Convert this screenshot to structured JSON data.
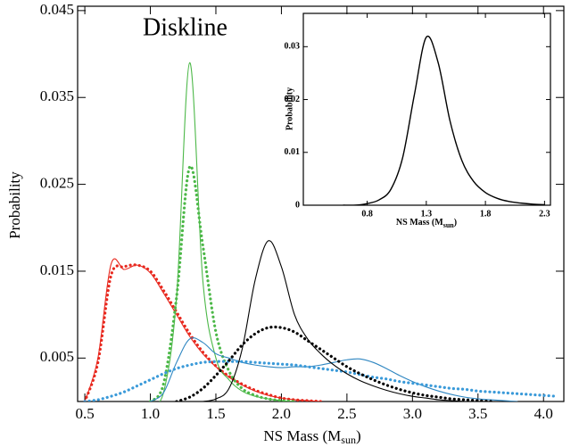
{
  "chart_data": [
    {
      "type": "line",
      "title": "Diskline",
      "xlabel": {
        "text": "NS Mass (M",
        "sub": "sun",
        "end": ")"
      },
      "ylabel": "Probability",
      "xlim": [
        0.445,
        4.155
      ],
      "ylim": [
        0,
        0.0455
      ],
      "xticks": [
        0.5,
        {
          "value": 1.0,
          "label": "1.0"
        },
        1.5,
        {
          "value": 2.0,
          "label": "2.0"
        },
        2.5,
        {
          "value": 3.0,
          "label": "3.0"
        },
        3.5,
        {
          "value": 4.0,
          "label": "4.0"
        }
      ],
      "yticks": [
        0.005,
        0.015,
        0.025,
        0.035,
        0.045
      ],
      "grid": false,
      "x": [
        0.5,
        0.6,
        0.7,
        0.8,
        0.9,
        1.0,
        1.1,
        1.2,
        1.3,
        1.4,
        1.5,
        1.6,
        1.7,
        1.8,
        1.9,
        2.0,
        2.1,
        2.2,
        2.3,
        2.4,
        2.5,
        2.6,
        2.7,
        2.8,
        2.9,
        3.0,
        3.1,
        3.2,
        3.3,
        3.4,
        3.5,
        3.6,
        3.7,
        3.8,
        3.9,
        4.0,
        4.1
      ],
      "series": [
        {
          "color": "#e8281e",
          "style": "solid",
          "values": [
            0,
            0.005,
            0.0158,
            0.0152,
            0.0157,
            0.0148,
            0.0125,
            0.01,
            0.0075,
            0.0055,
            0.004,
            0.0028,
            0.0019,
            0.0012,
            0.0007,
            0.0004,
            0.0002,
            0.0001,
            0,
            null,
            null,
            null,
            null,
            null,
            null,
            null,
            null,
            null,
            null,
            null,
            null,
            null,
            null,
            null,
            null,
            null,
            null
          ]
        },
        {
          "color": "#e8281e",
          "style": "dotted",
          "values": [
            0,
            0.0045,
            0.0145,
            0.0155,
            0.0157,
            0.015,
            0.0128,
            0.0103,
            0.0078,
            0.0057,
            0.0041,
            0.0029,
            0.002,
            0.0013,
            0.0008,
            0.0004,
            0.0002,
            0.0001,
            0,
            null,
            null,
            null,
            null,
            null,
            null,
            null,
            null,
            null,
            null,
            null,
            null,
            null,
            null,
            null,
            null,
            null,
            null
          ]
        },
        {
          "color": "#4cb848",
          "style": "solid",
          "values": [
            null,
            null,
            null,
            null,
            null,
            0,
            0.001,
            0.012,
            0.039,
            0.014,
            0.005,
            0.0025,
            0.0012,
            0.0006,
            0.0003,
            0.0001,
            0,
            null,
            null,
            null,
            null,
            null,
            null,
            null,
            null,
            null,
            null,
            null,
            null,
            null,
            null,
            null,
            null,
            null,
            null,
            null,
            null
          ]
        },
        {
          "color": "#4cb848",
          "style": "dotted",
          "values": [
            null,
            null,
            null,
            null,
            null,
            0,
            0.002,
            0.012,
            0.027,
            0.018,
            0.008,
            0.0035,
            0.0015,
            0.0007,
            0.0003,
            0.0001,
            0,
            null,
            null,
            null,
            null,
            null,
            null,
            null,
            null,
            null,
            null,
            null,
            null,
            null,
            null,
            null,
            null,
            null,
            null,
            null,
            null
          ]
        },
        {
          "color": "#2e86c1",
          "style": "solid",
          "values": [
            null,
            null,
            null,
            null,
            null,
            0,
            0.001,
            0.0045,
            0.0072,
            0.0068,
            0.0055,
            0.005,
            0.0045,
            0.0042,
            0.004,
            0.0039,
            0.004,
            0.004,
            0.0042,
            0.0045,
            0.0048,
            0.0049,
            0.0045,
            0.0038,
            0.003,
            0.0023,
            0.0017,
            0.0012,
            0.0008,
            0.0005,
            0.0003,
            0.0002,
            0.0001,
            0,
            null,
            null,
            null
          ]
        },
        {
          "color": "#3a9ad9",
          "style": "dotted",
          "values": [
            0,
            0.0002,
            0.0006,
            0.0011,
            0.0018,
            0.0025,
            0.0032,
            0.0038,
            0.0042,
            0.0045,
            0.0046,
            0.0046,
            0.0046,
            0.0045,
            0.0044,
            0.0043,
            0.0042,
            0.004,
            0.0038,
            0.0036,
            0.0034,
            0.0031,
            0.0028,
            0.0026,
            0.0023,
            0.0021,
            0.0019,
            0.0017,
            0.0015,
            0.0014,
            0.0012,
            0.0011,
            0.001,
            0.0009,
            0.0008,
            0.0007,
            0.0006
          ]
        },
        {
          "color": "#000000",
          "style": "solid",
          "values": [
            null,
            null,
            null,
            null,
            null,
            null,
            null,
            null,
            null,
            0,
            0.0003,
            0.0015,
            0.006,
            0.014,
            0.0185,
            0.0155,
            0.01,
            0.0072,
            0.0055,
            0.0042,
            0.0032,
            0.0024,
            0.0018,
            0.0013,
            0.0009,
            0.0006,
            0.0004,
            0.0002,
            0.0001,
            0,
            null,
            null,
            null,
            null,
            null,
            null,
            null
          ]
        },
        {
          "color": "#000000",
          "style": "dotted",
          "values": [
            null,
            null,
            null,
            null,
            null,
            null,
            null,
            0,
            0.0005,
            0.0015,
            0.003,
            0.0047,
            0.0065,
            0.0078,
            0.0085,
            0.0085,
            0.008,
            0.007,
            0.006,
            0.005,
            0.004,
            0.0032,
            0.0025,
            0.0019,
            0.0014,
            0.001,
            0.0007,
            0.0005,
            0.0003,
            0.0002,
            0.0001,
            0,
            null,
            null,
            null,
            null,
            null
          ]
        }
      ]
    },
    {
      "type": "line",
      "xlabel": {
        "text": "NS Mass (M",
        "sub": "sun",
        "end": ")"
      },
      "ylabel": "Probability",
      "xlim": [
        0.26,
        2.35
      ],
      "ylim": [
        0,
        0.0363
      ],
      "xticks": [
        0.8,
        1.3,
        1.8,
        2.3
      ],
      "yticks": [
        0,
        0.01,
        0.02,
        0.03
      ],
      "grid": false,
      "x": [
        0.6,
        0.7,
        0.8,
        0.9,
        1.0,
        1.1,
        1.2,
        1.3,
        1.4,
        1.5,
        1.6,
        1.7,
        1.8,
        1.9,
        2.0,
        2.1,
        2.2,
        2.3
      ],
      "series": [
        {
          "color": "#000000",
          "style": "solid",
          "values": [
            0,
            0,
            0.0003,
            0.001,
            0.003,
            0.009,
            0.021,
            0.0318,
            0.027,
            0.016,
            0.0085,
            0.0045,
            0.0024,
            0.0013,
            0.0007,
            0.0004,
            0.0002,
            0.0001
          ]
        }
      ]
    }
  ]
}
